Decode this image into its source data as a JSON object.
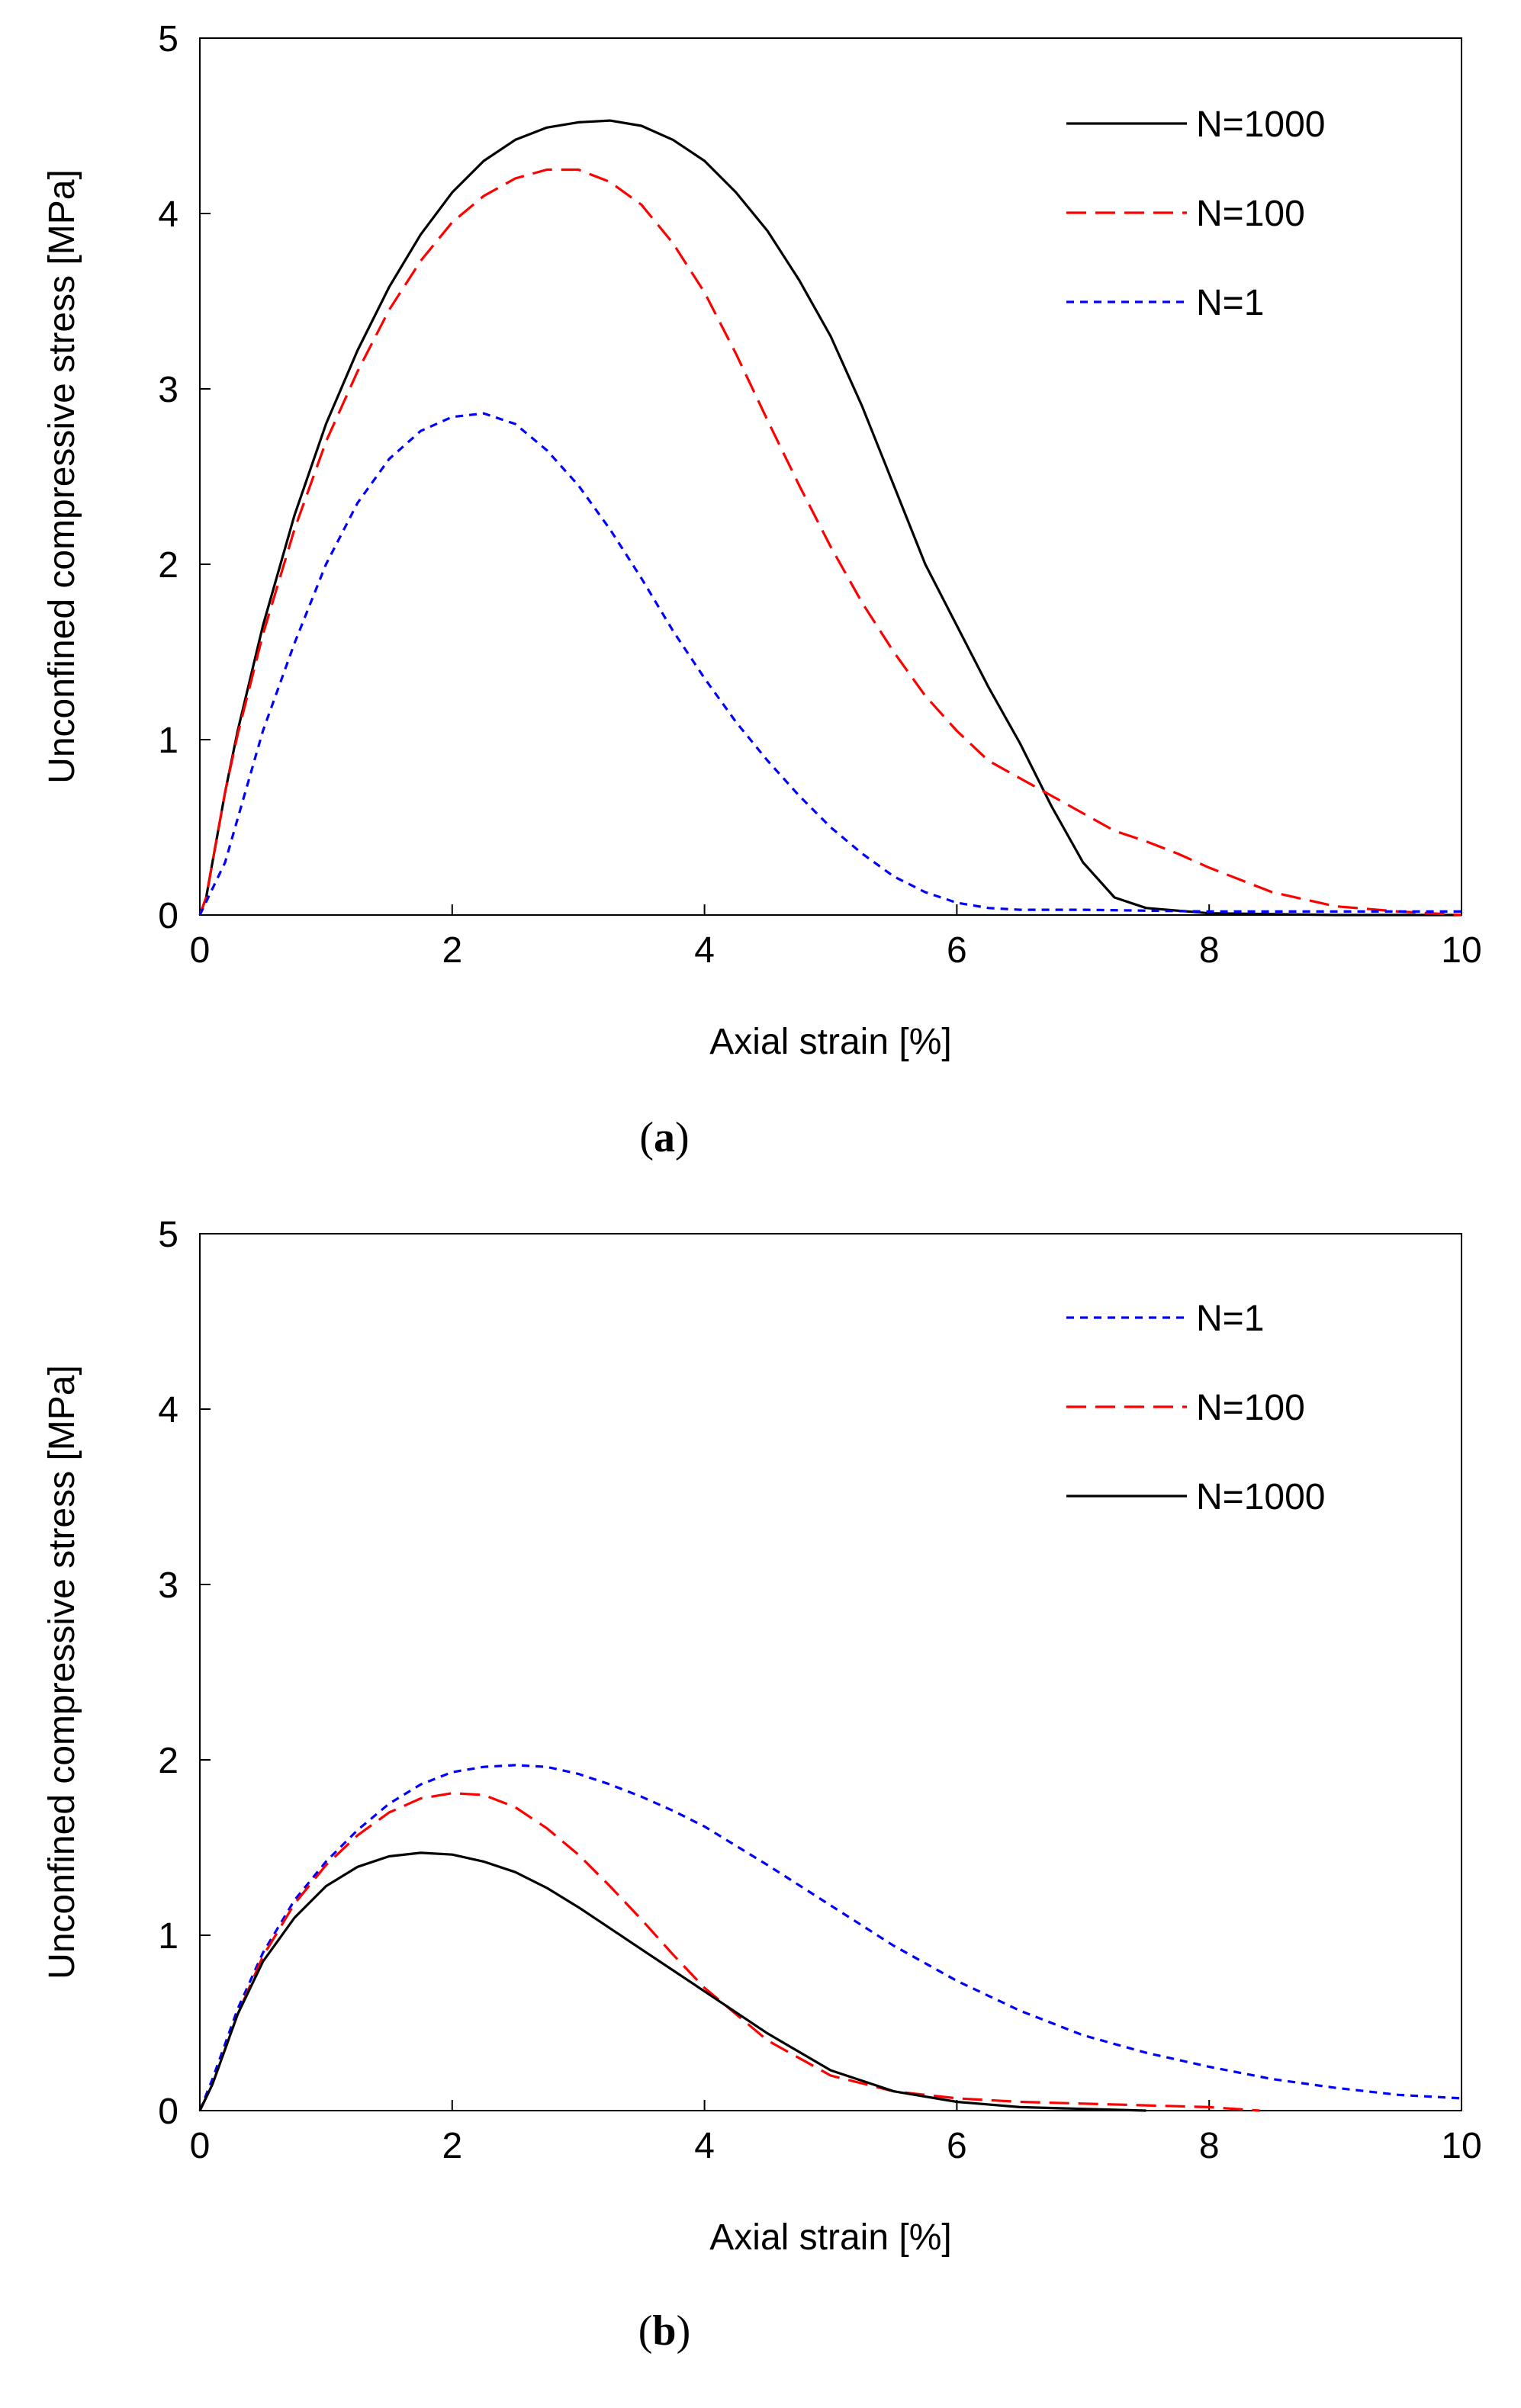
{
  "chart_data": [
    {
      "type": "line",
      "panel_label": "a",
      "xlabel": "Axial strain [%]",
      "ylabel": "Unconfined compressive stress [MPa]",
      "xlim": [
        0,
        10
      ],
      "ylim": [
        0,
        5
      ],
      "xticks": [
        0,
        2,
        4,
        6,
        8,
        10
      ],
      "yticks": [
        0,
        1,
        2,
        3,
        4,
        5
      ],
      "grid": false,
      "legend_position": "top-right",
      "series": [
        {
          "name": "N=1000",
          "color": "#000000",
          "dash": "solid",
          "x": [
            0,
            0.05,
            0.1,
            0.2,
            0.3,
            0.5,
            0.75,
            1.0,
            1.25,
            1.5,
            1.75,
            2.0,
            2.25,
            2.5,
            2.75,
            3.0,
            3.25,
            3.5,
            3.75,
            4.0,
            4.25,
            4.5,
            4.75,
            5.0,
            5.25,
            5.5,
            5.75,
            6.0,
            6.25,
            6.5,
            6.75,
            7.0,
            7.25,
            7.5,
            8.0,
            9.0,
            10.0
          ],
          "y": [
            0,
            0.1,
            0.3,
            0.7,
            1.05,
            1.65,
            2.28,
            2.8,
            3.22,
            3.58,
            3.88,
            4.12,
            4.3,
            4.42,
            4.49,
            4.52,
            4.53,
            4.5,
            4.42,
            4.3,
            4.12,
            3.9,
            3.62,
            3.3,
            2.9,
            2.45,
            2.0,
            1.65,
            1.3,
            0.98,
            0.62,
            0.3,
            0.1,
            0.04,
            0.01,
            0.0,
            0.0
          ]
        },
        {
          "name": "N=100",
          "color": "#ff0000",
          "dash": "long-dash",
          "x": [
            0,
            0.05,
            0.1,
            0.2,
            0.3,
            0.5,
            0.75,
            1.0,
            1.25,
            1.5,
            1.75,
            2.0,
            2.25,
            2.5,
            2.75,
            3.0,
            3.25,
            3.5,
            3.75,
            4.0,
            4.25,
            4.5,
            4.75,
            5.0,
            5.25,
            5.5,
            5.75,
            6.0,
            6.25,
            6.5,
            6.75,
            7.0,
            7.25,
            7.5,
            7.75,
            8.0,
            8.5,
            9.0,
            9.5,
            10.0
          ],
          "y": [
            0,
            0.1,
            0.3,
            0.7,
            1.03,
            1.6,
            2.2,
            2.7,
            3.1,
            3.45,
            3.73,
            3.95,
            4.1,
            4.2,
            4.25,
            4.25,
            4.18,
            4.05,
            3.83,
            3.55,
            3.2,
            2.82,
            2.45,
            2.1,
            1.78,
            1.5,
            1.25,
            1.05,
            0.88,
            0.78,
            0.68,
            0.58,
            0.48,
            0.42,
            0.35,
            0.27,
            0.13,
            0.05,
            0.02,
            0.0
          ]
        },
        {
          "name": "N=1",
          "color": "#0000ff",
          "dash": "short-dash",
          "x": [
            0,
            0.1,
            0.2,
            0.3,
            0.5,
            0.75,
            1.0,
            1.25,
            1.5,
            1.75,
            2.0,
            2.25,
            2.5,
            2.75,
            3.0,
            3.25,
            3.5,
            3.75,
            4.0,
            4.25,
            4.5,
            4.75,
            5.0,
            5.25,
            5.5,
            5.75,
            6.0,
            6.25,
            6.5,
            7.0,
            8.0,
            9.0,
            10.0
          ],
          "y": [
            0,
            0.15,
            0.3,
            0.55,
            1.05,
            1.55,
            2.0,
            2.35,
            2.6,
            2.76,
            2.84,
            2.86,
            2.8,
            2.65,
            2.45,
            2.2,
            1.92,
            1.62,
            1.35,
            1.1,
            0.88,
            0.68,
            0.5,
            0.35,
            0.22,
            0.13,
            0.07,
            0.04,
            0.03,
            0.03,
            0.02,
            0.02,
            0.02
          ]
        }
      ]
    },
    {
      "type": "line",
      "panel_label": "b",
      "xlabel": "Axial strain [%]",
      "ylabel": "Unconfined compressive stress [MPa]",
      "xlim": [
        0,
        10
      ],
      "ylim": [
        0,
        5
      ],
      "xticks": [
        0,
        2,
        4,
        6,
        8,
        10
      ],
      "yticks": [
        0,
        1,
        2,
        3,
        4,
        5
      ],
      "grid": false,
      "legend_position": "top-right",
      "series": [
        {
          "name": "N=1",
          "color": "#0000ff",
          "dash": "short-dash",
          "x": [
            0,
            0.1,
            0.2,
            0.3,
            0.5,
            0.75,
            1.0,
            1.25,
            1.5,
            1.75,
            2.0,
            2.25,
            2.5,
            2.75,
            3.0,
            3.25,
            3.5,
            3.75,
            4.0,
            4.5,
            5.0,
            5.5,
            6.0,
            6.5,
            7.0,
            7.5,
            8.0,
            8.5,
            9.0,
            9.5,
            10.0
          ],
          "y": [
            0,
            0.18,
            0.38,
            0.58,
            0.9,
            1.2,
            1.42,
            1.6,
            1.75,
            1.86,
            1.93,
            1.96,
            1.97,
            1.96,
            1.92,
            1.86,
            1.79,
            1.71,
            1.62,
            1.4,
            1.17,
            0.94,
            0.74,
            0.57,
            0.43,
            0.33,
            0.25,
            0.18,
            0.13,
            0.09,
            0.07
          ]
        },
        {
          "name": "N=100",
          "color": "#ff0000",
          "dash": "long-dash",
          "x": [
            0,
            0.1,
            0.2,
            0.3,
            0.5,
            0.75,
            1.0,
            1.25,
            1.5,
            1.75,
            2.0,
            2.25,
            2.5,
            2.75,
            3.0,
            3.25,
            3.5,
            3.75,
            4.0,
            4.5,
            5.0,
            5.5,
            6.0,
            6.5,
            7.0,
            7.5,
            8.0,
            8.4
          ],
          "y": [
            0,
            0.15,
            0.35,
            0.55,
            0.88,
            1.18,
            1.4,
            1.57,
            1.7,
            1.78,
            1.81,
            1.8,
            1.73,
            1.61,
            1.46,
            1.28,
            1.09,
            0.89,
            0.7,
            0.4,
            0.2,
            0.11,
            0.07,
            0.05,
            0.04,
            0.03,
            0.02,
            0.0
          ]
        },
        {
          "name": "N=1000",
          "color": "#000000",
          "dash": "solid",
          "x": [
            0,
            0.1,
            0.2,
            0.3,
            0.5,
            0.75,
            1.0,
            1.25,
            1.5,
            1.75,
            2.0,
            2.25,
            2.5,
            2.75,
            3.0,
            3.25,
            3.5,
            3.75,
            4.0,
            4.5,
            5.0,
            5.5,
            6.0,
            6.5,
            7.0,
            7.5
          ],
          "y": [
            0,
            0.15,
            0.35,
            0.55,
            0.85,
            1.1,
            1.28,
            1.39,
            1.45,
            1.47,
            1.46,
            1.42,
            1.36,
            1.27,
            1.16,
            1.04,
            0.92,
            0.8,
            0.68,
            0.44,
            0.23,
            0.11,
            0.05,
            0.02,
            0.01,
            0.0
          ]
        }
      ]
    }
  ]
}
